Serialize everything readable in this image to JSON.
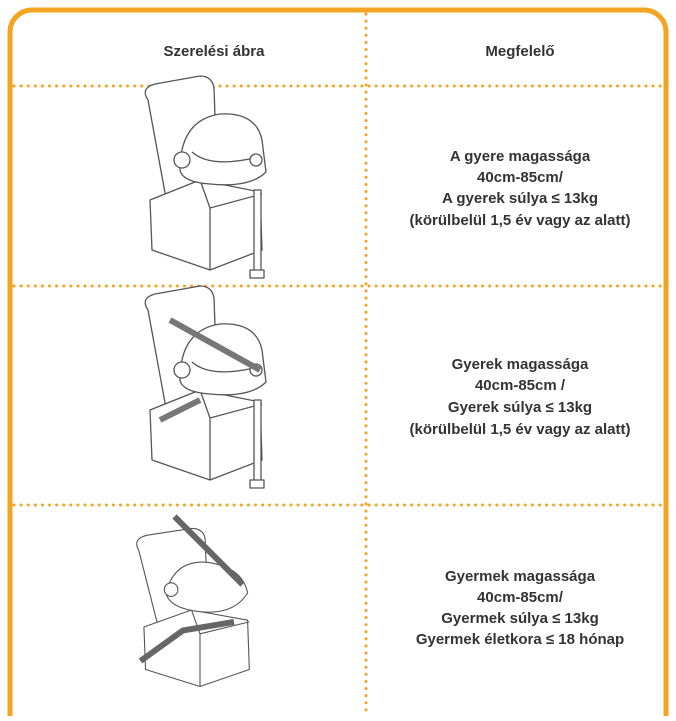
{
  "table": {
    "headers": [
      "Szerelési ábra",
      "Megfelelő"
    ],
    "rows": [
      {
        "lines": [
          "A gyere magassága",
          "40cm-85cm/",
          "A gyerek súlya ≤ 13kg",
          "(körülbelül 1,5 év vagy az alatt)"
        ]
      },
      {
        "lines": [
          "Gyerek magassága",
          "40cm-85cm /",
          "Gyerek súlya ≤ 13kg",
          "(körülbelül 1,5 év vagy az alatt)"
        ]
      },
      {
        "lines": [
          "Gyermek magassága",
          "40cm-85cm/",
          "Gyermek súlya ≤ 13kg",
          "Gyermek életkora ≤ 18 hónap"
        ]
      }
    ]
  }
}
